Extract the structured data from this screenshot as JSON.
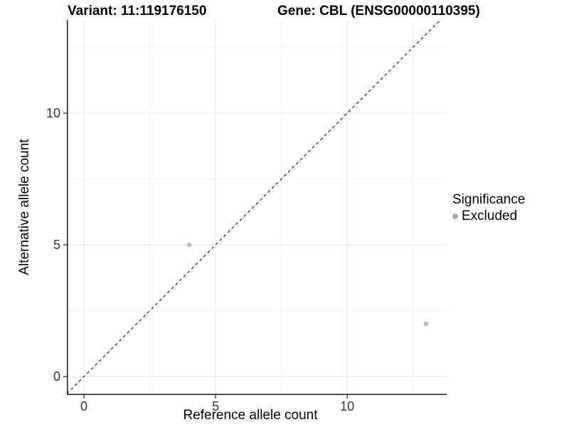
{
  "titles": {
    "left": "Variant: 11:119176150",
    "right": "Gene: CBL (ENSG00000110395)"
  },
  "chart_data": {
    "type": "scatter",
    "title_left": "Variant: 11:119176150",
    "title_right": "Gene: CBL (ENSG00000110395)",
    "xlabel": "Reference allele count",
    "ylabel": "Alternative allele count",
    "xlim": [
      -0.65,
      13.78
    ],
    "ylim": [
      -0.7,
      13.54
    ],
    "x_major_ticks": [
      0,
      5,
      10
    ],
    "y_major_ticks": [
      0,
      5,
      10
    ],
    "x_tick_labels": [
      "0",
      "5",
      "10"
    ],
    "y_tick_labels": [
      "0",
      "5",
      "10"
    ],
    "x_minor_ticks": [
      2.5,
      7.5,
      12.5
    ],
    "y_minor_ticks": [
      2.5,
      7.5,
      12.5
    ],
    "grid": true,
    "series": [
      {
        "name": "Excluded",
        "color": "#bdbdbd",
        "points": [
          {
            "x": 4,
            "y": 5
          },
          {
            "x": 13,
            "y": 2
          }
        ]
      }
    ],
    "identity_line": {
      "slope": 1,
      "intercept": 0,
      "style": "dashed",
      "color": "#1a1a1a"
    },
    "legend": {
      "position": "right",
      "title": "Significance",
      "items": [
        {
          "label": "Excluded",
          "color": "#aaaaaa"
        }
      ]
    },
    "colors": {
      "background": "#ffffff",
      "grid_major": "#e4e4e4",
      "grid_minor": "#f0f0f0",
      "axis_line": "#1a1a1a",
      "tick": "#1a1a1a",
      "tick_label": "#333333"
    }
  }
}
